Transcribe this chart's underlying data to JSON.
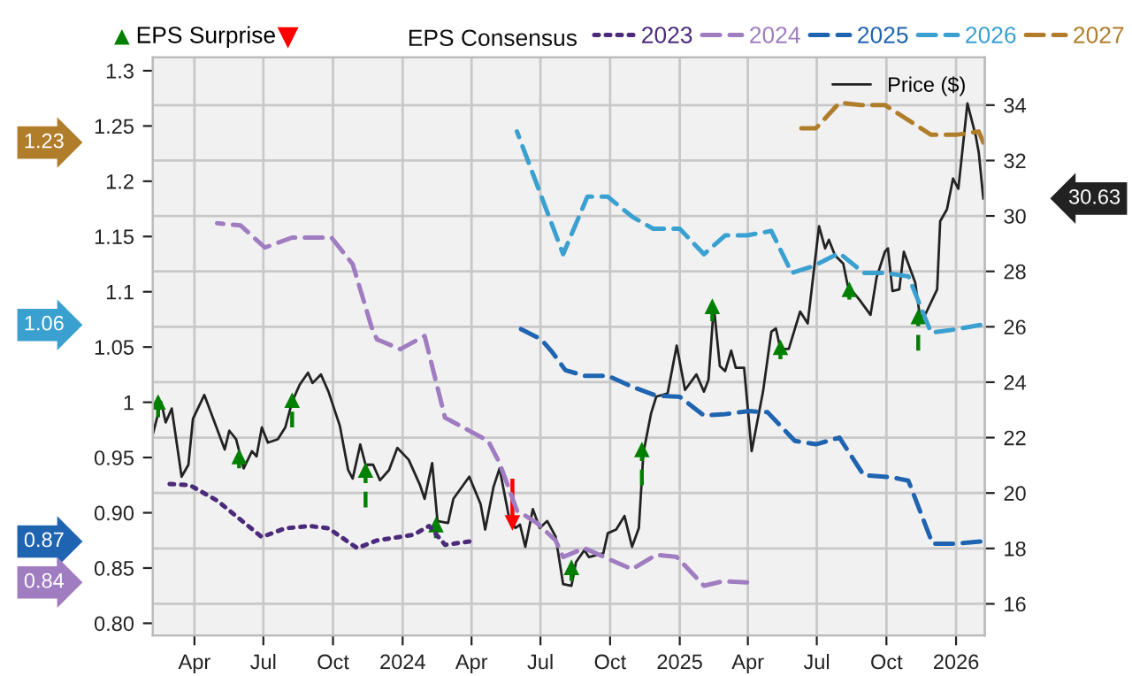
{
  "chart_data": {
    "type": "line",
    "xlim": [
      "2023-02-05",
      "2026-02-08"
    ],
    "xticks": [
      {
        "value": "2023-04-01",
        "label": "Apr"
      },
      {
        "value": "2023-07-01",
        "label": "Jul"
      },
      {
        "value": "2023-10-01",
        "label": "Oct"
      },
      {
        "value": "2024-01-01",
        "label": "2024"
      },
      {
        "value": "2024-04-01",
        "label": "Apr"
      },
      {
        "value": "2024-07-01",
        "label": "Jul"
      },
      {
        "value": "2024-10-01",
        "label": "Oct"
      },
      {
        "value": "2025-01-01",
        "label": "2025"
      },
      {
        "value": "2025-04-01",
        "label": "Apr"
      },
      {
        "value": "2025-07-01",
        "label": "Jul"
      },
      {
        "value": "2025-10-01",
        "label": "Oct"
      },
      {
        "value": "2026-01-01",
        "label": "2026"
      }
    ],
    "ylim": [
      0.789,
      1.312
    ],
    "yticks": [
      {
        "value": 0.8,
        "label": "0.80"
      },
      0.85,
      {
        "value": 0.9,
        "label": "0.90"
      },
      0.95,
      1,
      1.05,
      1.1,
      1.15,
      1.2,
      1.25,
      1.3
    ],
    "y2lim": [
      14.86,
      35.72
    ],
    "y2ticks": [
      16,
      18,
      20,
      22,
      24,
      26,
      28,
      30,
      32,
      34
    ],
    "grid": true,
    "legend": "top",
    "legend_title": "EPS Consensus",
    "series": [
      {
        "name": "2023",
        "type": "line",
        "line_style": "dotted",
        "color": "#4b2a7b",
        "x": [
          "2023-02-26",
          "2023-03-26",
          "2023-05-01",
          "2023-06-29",
          "2023-07-30",
          "2023-08-31",
          "2023-09-25",
          "2023-11-02",
          "2023-11-28",
          "2024-01-15",
          "2024-02-05",
          "2024-02-26",
          "2024-03-29"
        ],
        "values": [
          0.926,
          0.925,
          0.911,
          0.878,
          0.886,
          0.888,
          0.886,
          0.868,
          0.875,
          0.88,
          0.888,
          0.871,
          0.874
        ]
      },
      {
        "name": "2024",
        "type": "line",
        "line_style": "dashed",
        "color": "#a07cc0",
        "x": [
          "2023-05-01",
          "2023-06-01",
          "2023-07-03",
          "2023-08-08",
          "2023-09-29",
          "2023-10-27",
          "2023-11-21",
          "2023-11-28",
          "2023-12-29",
          "2024-01-30",
          "2024-02-26",
          "2024-03-27",
          "2024-04-23",
          "2024-05-08",
          "2024-05-31",
          "2024-06-26",
          "2024-07-21",
          "2024-07-31",
          "2024-08-28",
          "2024-10-03",
          "2024-10-30",
          "2024-12-01",
          "2024-12-28",
          "2025-02-02",
          "2025-02-27",
          "2025-03-31"
        ],
        "values": [
          1.162,
          1.16,
          1.14,
          1.149,
          1.149,
          1.125,
          1.068,
          1.057,
          1.048,
          1.06,
          0.986,
          0.975,
          0.965,
          0.945,
          0.902,
          0.891,
          0.875,
          0.86,
          0.868,
          0.857,
          0.849,
          0.862,
          0.86,
          0.834,
          0.838,
          0.837
        ]
      },
      {
        "name": "2025",
        "type": "line",
        "line_style": "dashed",
        "color": "#1f64b0",
        "x": [
          "2024-05-31",
          "2024-07-02",
          "2024-07-17",
          "2024-08-03",
          "2024-08-28",
          "2024-09-28",
          "2024-10-30",
          "2024-12-01",
          "2025-01-01",
          "2025-02-02",
          "2025-02-27",
          "2025-04-02",
          "2025-04-27",
          "2025-06-02",
          "2025-06-30",
          "2025-07-31",
          "2025-09-01",
          "2025-10-09",
          "2025-10-30",
          "2025-12-01",
          "2026-01-01",
          "2026-02-02"
        ],
        "values": [
          1.068,
          1.057,
          1.045,
          1.029,
          1.024,
          1.024,
          1.014,
          1.006,
          1.005,
          0.988,
          0.989,
          0.992,
          0.991,
          0.965,
          0.962,
          0.968,
          0.934,
          0.932,
          0.929,
          0.872,
          0.872,
          0.874
        ]
      },
      {
        "name": "2026",
        "type": "line",
        "line_style": "dashed",
        "color": "#3aa0d0",
        "x": [
          "2024-05-31",
          "2024-07-31",
          "2024-09-01",
          "2024-09-28",
          "2024-10-30",
          "2024-11-27",
          "2025-01-01",
          "2025-02-02",
          "2025-03-02",
          "2025-03-31",
          "2025-05-02",
          "2025-05-29",
          "2025-06-26",
          "2025-07-31",
          "2025-09-01",
          "2025-09-29",
          "2025-10-30",
          "2025-11-29",
          "2026-01-01",
          "2026-02-02"
        ],
        "values": [
          1.245,
          1.134,
          1.186,
          1.186,
          1.168,
          1.157,
          1.157,
          1.134,
          1.151,
          1.151,
          1.155,
          1.117,
          1.123,
          1.135,
          1.117,
          1.117,
          1.114,
          1.063,
          1.066,
          1.07
        ]
      },
      {
        "name": "2027",
        "type": "line",
        "line_style": "dashed",
        "color": "#b07d2a",
        "x": [
          "2025-06-02",
          "2025-06-30",
          "2025-07-31",
          "2025-08-28",
          "2025-09-29",
          "2025-11-29",
          "2026-01-01",
          "2026-01-31",
          "2026-02-06"
        ],
        "values": [
          1.248,
          1.248,
          1.271,
          1.269,
          1.269,
          1.242,
          1.242,
          1.245,
          1.235
        ]
      },
      {
        "name": "Price ($)",
        "type": "line",
        "axis": "y2",
        "line_style": "solid",
        "color": "#222222",
        "x": [
          "2023-02-05",
          "2023-02-16",
          "2023-02-22",
          "2023-03-02",
          "2023-03-15",
          "2023-03-24",
          "2023-03-30",
          "2023-04-14",
          "2023-05-11",
          "2023-05-17",
          "2023-05-26",
          "2023-06-05",
          "2023-06-16",
          "2023-06-22",
          "2023-06-29",
          "2023-07-07",
          "2023-07-20",
          "2023-07-30",
          "2023-08-08",
          "2023-08-18",
          "2023-08-29",
          "2023-09-04",
          "2023-09-15",
          "2023-09-25",
          "2023-10-10",
          "2023-10-21",
          "2023-10-27",
          "2023-11-06",
          "2023-11-13",
          "2023-11-23",
          "2023-12-02",
          "2023-12-14",
          "2023-12-25",
          "2024-01-09",
          "2024-01-24",
          "2024-01-30",
          "2024-02-09",
          "2024-02-16",
          "2024-03-01",
          "2024-03-08",
          "2024-03-29",
          "2024-04-13",
          "2024-04-19",
          "2024-04-30",
          "2024-05-08",
          "2024-05-21",
          "2024-05-29",
          "2024-06-04",
          "2024-06-11",
          "2024-06-21",
          "2024-06-30",
          "2024-07-10",
          "2024-07-21",
          "2024-07-31",
          "2024-08-11",
          "2024-08-17",
          "2024-08-28",
          "2024-09-03",
          "2024-09-22",
          "2024-09-28",
          "2024-10-09",
          "2024-10-20",
          "2024-10-30",
          "2024-11-08",
          "2024-11-14",
          "2024-11-24",
          "2024-12-01",
          "2024-12-16",
          "2024-12-28",
          "2025-01-08",
          "2025-01-23",
          "2025-02-02",
          "2025-02-08",
          "2025-02-15",
          "2025-02-23",
          "2025-03-02",
          "2025-03-10",
          "2025-03-16",
          "2025-03-27",
          "2025-04-06",
          "2025-04-21",
          "2025-05-02",
          "2025-05-08",
          "2025-05-14",
          "2025-05-25",
          "2025-06-09",
          "2025-06-19",
          "2025-07-04",
          "2025-07-12",
          "2025-07-17",
          "2025-07-25",
          "2025-08-05",
          "2025-08-11",
          "2025-08-26",
          "2025-09-10",
          "2025-09-18",
          "2025-09-29",
          "2025-10-03",
          "2025-10-09",
          "2025-10-18",
          "2025-10-24",
          "2025-11-08",
          "2025-11-14",
          "2025-11-20",
          "2025-12-07",
          "2025-12-11",
          "2025-12-20",
          "2025-12-28",
          "2026-01-04",
          "2026-01-16",
          "2026-01-27",
          "2026-01-31",
          "2026-02-06"
        ],
        "values": [
          22.12,
          23.29,
          22.55,
          23.05,
          20.59,
          21.02,
          22.68,
          23.54,
          21.57,
          22.25,
          21.94,
          20.89,
          21.51,
          21.32,
          22.37,
          21.82,
          21.94,
          22.37,
          23.29,
          23.91,
          24.34,
          23.97,
          24.28,
          23.66,
          22.43,
          20.83,
          20.52,
          21.75,
          21.02,
          21.02,
          20.46,
          20.83,
          21.63,
          21.2,
          20.28,
          19.79,
          21.08,
          18.99,
          18.92,
          19.79,
          20.59,
          19.6,
          18.68,
          20.22,
          20.89,
          19.05,
          18.74,
          18.86,
          18.06,
          19.42,
          18.74,
          18.99,
          18.43,
          16.71,
          16.65,
          17.51,
          17.94,
          17.69,
          17.82,
          18.55,
          18.68,
          19.17,
          18.06,
          18.74,
          21.45,
          22.86,
          23.48,
          23.6,
          25.32,
          23.72,
          24.28,
          23.66,
          24.09,
          26.74,
          24.58,
          24.4,
          25.14,
          24.52,
          24.52,
          21.51,
          23.66,
          25.82,
          25.94,
          25.2,
          25.2,
          26.55,
          26.12,
          29.63,
          28.83,
          29.14,
          28.58,
          28.28,
          27.48,
          26.99,
          26.43,
          27.78,
          28.71,
          28.83,
          27.29,
          27.35,
          28.71,
          27.6,
          26.43,
          26.37,
          27.35,
          29.81,
          30.24,
          31.35,
          30.98,
          34.06,
          32.89,
          32.28,
          30.63
        ]
      },
      {
        "name": "EPS Surprise",
        "type": "scatter",
        "axis": "y2",
        "marker": "triangle",
        "line_style": "dashed",
        "color": "#008000",
        "x": [
          "2023-02-12",
          "2023-05-30",
          "2023-08-08",
          "2023-11-13",
          "2024-02-14",
          "2024-08-11",
          "2024-11-12",
          "2025-02-13",
          "2025-05-14",
          "2025-08-13",
          "2025-11-12"
        ],
        "values": [
          23.29,
          21.32,
          23.35,
          20.83,
          18.86,
          17.32,
          21.57,
          26.74,
          25.26,
          27.35,
          26.37
        ],
        "errors": [
          [
            22.74,
            23.29
          ],
          [
            20.89,
            21.32
          ],
          [
            22.37,
            23.35
          ],
          [
            19.48,
            20.83
          ],
          [
            18.37,
            18.86
          ],
          [
            16.83,
            17.32
          ],
          [
            20.28,
            21.57
          ],
          [
            26.2,
            26.74
          ],
          [
            24.83,
            25.26
          ],
          [
            26.98,
            27.35
          ],
          [
            25.14,
            26.37
          ]
        ]
      },
      {
        "type": "scatter",
        "axis": "y2",
        "marker": "triangle",
        "line_style": "solid",
        "color": "#ff0000",
        "x": [
          "2024-05-25"
        ],
        "values": [
          18.92
        ],
        "errors": [
          [
            18.92,
            20.52
          ]
        ]
      }
    ],
    "annotations": [
      "30.63",
      "1.23",
      "1.06",
      "0.87",
      "0.84"
    ]
  }
}
